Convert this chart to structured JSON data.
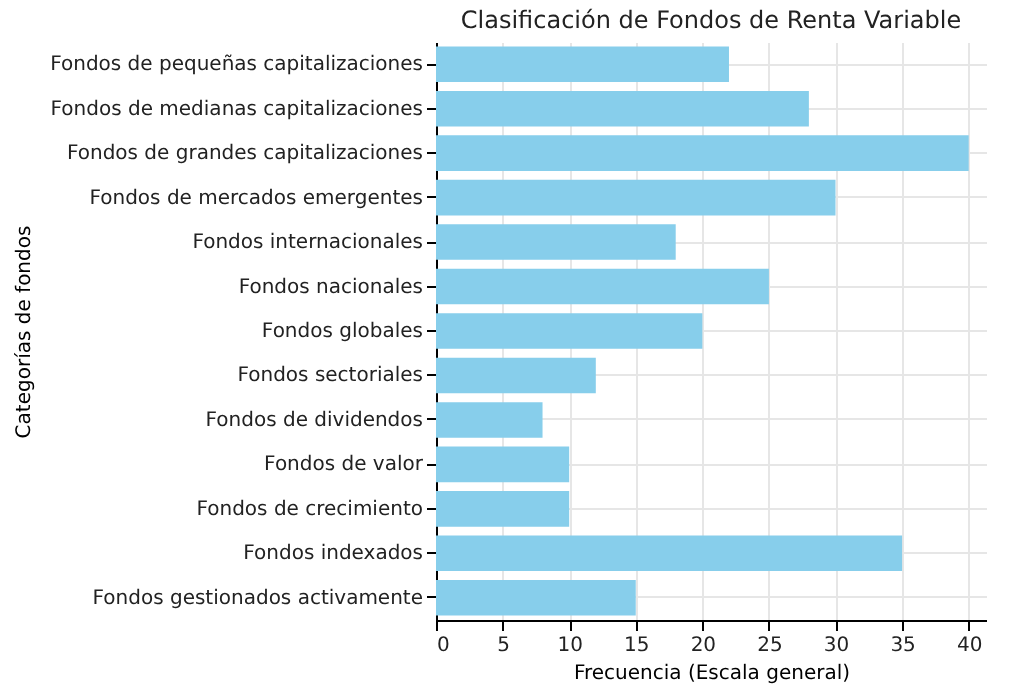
{
  "chart_data": {
    "type": "bar",
    "orientation": "horizontal",
    "title": "Clasificación de Fondos de Renta Variable",
    "xlabel": "Frecuencia (Escala general)",
    "ylabel": "Categorías de fondos",
    "categories": [
      "Fondos de pequeñas capitalizaciones",
      "Fondos de medianas capitalizaciones",
      "Fondos de grandes capitalizaciones",
      "Fondos de mercados emergentes",
      "Fondos internacionales",
      "Fondos nacionales",
      "Fondos globales",
      "Fondos sectoriales",
      "Fondos de dividendos",
      "Fondos de valor",
      "Fondos de crecimiento",
      "Fondos indexados",
      "Fondos gestionados activamente"
    ],
    "values": [
      22,
      28,
      40,
      30,
      18,
      25,
      20,
      12,
      8,
      10,
      10,
      35,
      15
    ],
    "color": "#87ceeb",
    "xlim": [
      0,
      41.3
    ],
    "xticks": [
      0,
      5,
      10,
      15,
      20,
      25,
      30,
      35,
      40
    ],
    "grid": true
  }
}
